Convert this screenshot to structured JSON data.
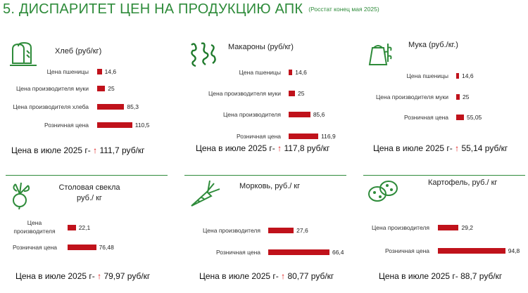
{
  "header": {
    "title": "5. ДИСПАРИТЕТ ЦЕН НА ПРОДУКЦИЮ АПК",
    "source": "(Росстат конец мая 2025)"
  },
  "colors": {
    "bar": "#c0121b",
    "accent": "#2e8b3a",
    "arrow": "#d11111"
  },
  "icons": [
    "bread-icon",
    "pasta-icon",
    "flour-icon",
    "beet-icon",
    "carrot-icon",
    "potato-icon"
  ],
  "chart_data": [
    {
      "type": "bar",
      "title": "Хлеб (руб/кг)",
      "categories": [
        "Цена пшеницы",
        "Цена производителя муки",
        "Цена производителя хлеба",
        "Розничная цена"
      ],
      "values": [
        14.6,
        25,
        85.3,
        110.5
      ],
      "value_labels": [
        "14,6",
        "25",
        "85,3",
        "110,5"
      ],
      "summary": {
        "prefix": "Цена в июле 2025 г-",
        "arrow": "↑",
        "value": "111,7 руб/кг"
      }
    },
    {
      "type": "bar",
      "title": "Макароны (руб/кг)",
      "categories": [
        "Цена пшеницы",
        "Цена производителя муки",
        "Цена производителя",
        "Розничная цена"
      ],
      "values": [
        14.6,
        25,
        85.6,
        116.9
      ],
      "value_labels": [
        "14,6",
        "25",
        "85,6",
        "116,9"
      ],
      "summary": {
        "prefix": "Цена в июле 2025 г-",
        "arrow": "↑",
        "value": "117,8 руб/кг"
      }
    },
    {
      "type": "bar",
      "title": "Мука (руб./кг.)",
      "categories": [
        "Цена пшеницы",
        "Цена производителя муки",
        "Розничная цена"
      ],
      "values": [
        14.6,
        25,
        55.05
      ],
      "value_labels": [
        "14,6",
        "25",
        "55,05"
      ],
      "summary": {
        "prefix": "Цена в июле 2025 г-",
        "arrow": "↑",
        "value": "55,14 руб/кг"
      }
    },
    {
      "type": "bar",
      "title": "Столовая свекла руб./ кг",
      "categories": [
        "Цена производителя",
        "Розничная цена"
      ],
      "values": [
        22.1,
        76.48
      ],
      "value_labels": [
        "22,1",
        "76,48"
      ],
      "summary": {
        "prefix": "Цена в июле 2025 г-",
        "arrow": "↑",
        "value": "79,97 руб/кг"
      }
    },
    {
      "type": "bar",
      "title": "Морковь, руб./ кг",
      "categories": [
        "Цена производителя",
        "Розничная цена"
      ],
      "values": [
        27.6,
        66.4
      ],
      "value_labels": [
        "27,6",
        "66,4"
      ],
      "summary": {
        "prefix": "Цена в июле 2025 г-",
        "arrow": "↑",
        "value": "80,77 руб/кг"
      }
    },
    {
      "type": "bar",
      "title": "Картофель, руб./ кг",
      "categories": [
        "Цена производителя",
        "Розничная цена"
      ],
      "values": [
        29.2,
        94.8
      ],
      "value_labels": [
        "29,2",
        "94,8"
      ],
      "summary": {
        "prefix": "Цена в июле 2025 г-",
        "arrow": "",
        "value": "88,7 руб/кг"
      }
    }
  ]
}
